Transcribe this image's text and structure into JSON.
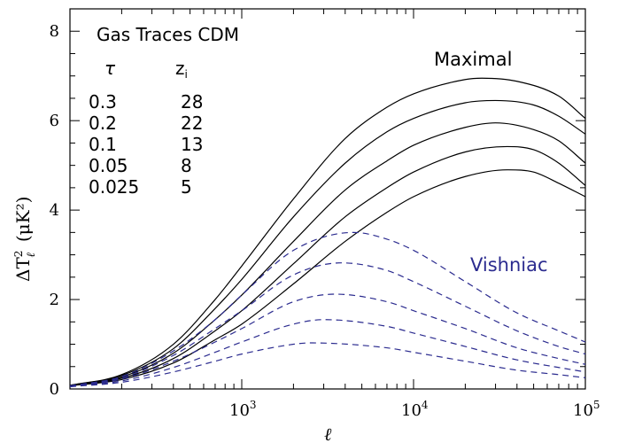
{
  "chart_data": {
    "type": "line",
    "xscale": "log",
    "xlabel": "ℓ",
    "ylabel": {
      "symbol": "ΔT",
      "sup": "2",
      "sub": "ℓ",
      "unit": "(μK²)"
    },
    "xlim": [
      100,
      100000
    ],
    "ylim": [
      0,
      8.5
    ],
    "yticks": [
      0,
      2,
      4,
      6,
      8
    ],
    "xticks": [
      {
        "value": 1000,
        "base": "10",
        "exp": "3"
      },
      {
        "value": 10000,
        "base": "10",
        "exp": "4"
      },
      {
        "value": 100000,
        "base": "10",
        "exp": "5"
      }
    ],
    "legend": {
      "title": "Gas Traces CDM",
      "col_headers": [
        "τ",
        "z",
        "i"
      ],
      "rows": [
        {
          "tau": "0.3",
          "zi": "28"
        },
        {
          "tau": "0.2",
          "zi": "22"
        },
        {
          "tau": "0.1",
          "zi": "13"
        },
        {
          "tau": "0.05",
          "zi": "8"
        },
        {
          "tau": "0.025",
          "zi": "5"
        }
      ]
    },
    "annotations": [
      {
        "text": "Maximal",
        "color": "#000000"
      },
      {
        "text": "Vishniac",
        "color": "#2b2b8f"
      }
    ],
    "colors": {
      "maximal": "#000000",
      "vishniac": "#2b2b8f"
    },
    "series": [
      {
        "group": "maximal",
        "tau": 0.3,
        "x": [
          100,
          200,
          400,
          700,
          1000,
          2000,
          4000,
          7000,
          10000,
          20000,
          25000,
          40000,
          70000,
          100000
        ],
        "y": [
          0.08,
          0.32,
          1.0,
          2.0,
          2.75,
          4.25,
          5.6,
          6.3,
          6.6,
          6.92,
          6.95,
          6.88,
          6.55,
          6.05
        ]
      },
      {
        "group": "maximal",
        "tau": 0.2,
        "x": [
          100,
          200,
          400,
          700,
          1000,
          2000,
          4000,
          7000,
          10000,
          20000,
          30000,
          50000,
          70000,
          100000
        ],
        "y": [
          0.08,
          0.3,
          0.9,
          1.8,
          2.45,
          3.85,
          5.05,
          5.75,
          6.05,
          6.4,
          6.45,
          6.35,
          6.1,
          5.7
        ]
      },
      {
        "group": "maximal",
        "tau": 0.1,
        "x": [
          100,
          200,
          400,
          700,
          1000,
          2000,
          4000,
          7000,
          10000,
          20000,
          30000,
          50000,
          70000,
          100000
        ],
        "y": [
          0.08,
          0.27,
          0.8,
          1.55,
          2.1,
          3.3,
          4.45,
          5.1,
          5.45,
          5.85,
          5.95,
          5.8,
          5.55,
          5.05
        ]
      },
      {
        "group": "maximal",
        "tau": 0.05,
        "x": [
          100,
          200,
          400,
          700,
          1000,
          2000,
          4000,
          7000,
          10000,
          20000,
          35000,
          50000,
          70000,
          100000
        ],
        "y": [
          0.07,
          0.24,
          0.68,
          1.3,
          1.75,
          2.8,
          3.85,
          4.5,
          4.85,
          5.3,
          5.42,
          5.35,
          5.05,
          4.55
        ]
      },
      {
        "group": "maximal",
        "tau": 0.025,
        "x": [
          100,
          200,
          400,
          700,
          1000,
          2000,
          4000,
          7000,
          10000,
          20000,
          35000,
          50000,
          70000,
          100000
        ],
        "y": [
          0.07,
          0.21,
          0.58,
          1.1,
          1.45,
          2.35,
          3.3,
          3.95,
          4.3,
          4.75,
          4.9,
          4.85,
          4.6,
          4.3
        ]
      },
      {
        "group": "vishniac",
        "tau": 0.3,
        "x": [
          100,
          200,
          400,
          700,
          1000,
          2000,
          4500,
          7000,
          10000,
          20000,
          40000,
          70000,
          100000
        ],
        "y": [
          0.07,
          0.28,
          0.85,
          1.55,
          2.1,
          3.1,
          3.5,
          3.35,
          3.1,
          2.4,
          1.7,
          1.3,
          1.05
        ]
      },
      {
        "group": "vishniac",
        "tau": 0.2,
        "x": [
          100,
          200,
          400,
          700,
          1000,
          2000,
          3800,
          7000,
          10000,
          20000,
          40000,
          70000,
          100000
        ],
        "y": [
          0.07,
          0.25,
          0.75,
          1.35,
          1.75,
          2.55,
          2.82,
          2.65,
          2.4,
          1.85,
          1.3,
          0.95,
          0.78
        ]
      },
      {
        "group": "vishniac",
        "tau": 0.1,
        "x": [
          100,
          200,
          400,
          700,
          1000,
          2000,
          3500,
          7000,
          10000,
          20000,
          40000,
          70000,
          100000
        ],
        "y": [
          0.06,
          0.22,
          0.62,
          1.05,
          1.35,
          1.95,
          2.12,
          1.95,
          1.75,
          1.35,
          0.92,
          0.68,
          0.55
        ]
      },
      {
        "group": "vishniac",
        "tau": 0.05,
        "x": [
          100,
          200,
          400,
          700,
          1000,
          2000,
          3000,
          7000,
          10000,
          20000,
          40000,
          70000,
          100000
        ],
        "y": [
          0.06,
          0.18,
          0.48,
          0.82,
          1.05,
          1.45,
          1.55,
          1.4,
          1.25,
          0.95,
          0.65,
          0.48,
          0.38
        ]
      },
      {
        "group": "vishniac",
        "tau": 0.025,
        "x": [
          100,
          200,
          400,
          700,
          1000,
          2000,
          2500,
          7000,
          10000,
          20000,
          40000,
          70000,
          100000
        ],
        "y": [
          0.05,
          0.15,
          0.38,
          0.62,
          0.78,
          1.0,
          1.03,
          0.92,
          0.82,
          0.62,
          0.42,
          0.32,
          0.25
        ]
      }
    ]
  }
}
